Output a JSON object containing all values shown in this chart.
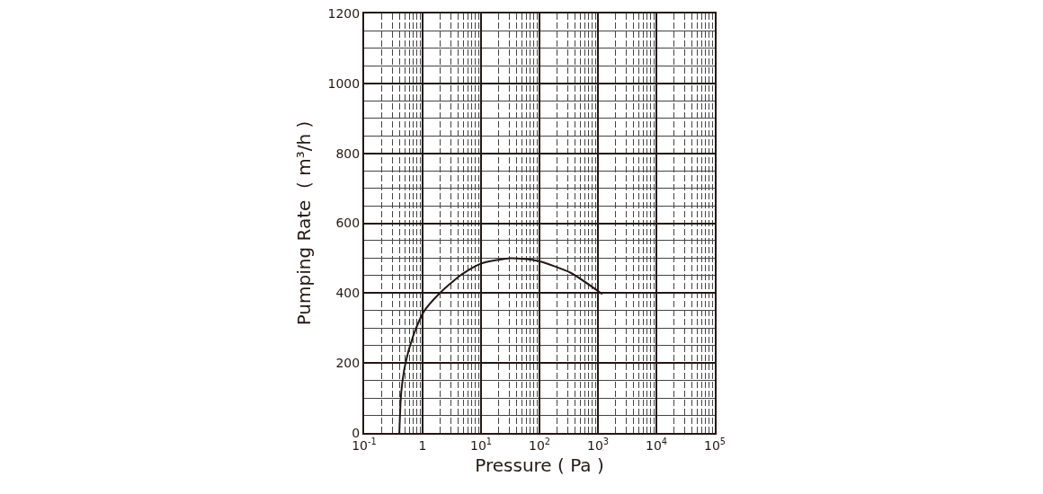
{
  "chart_data": {
    "type": "line",
    "xlabel": "Pressure ( Pa )",
    "ylabel": "Pumping Rate  ( m³/h )",
    "x": [
      0.4,
      0.43,
      0.51,
      0.69,
      1.04,
      1.89,
      4.3,
      9.8,
      32,
      94,
      342,
      1190
    ],
    "series": [
      {
        "color": "#231815",
        "values": [
          0,
          114,
          200,
          277,
          346,
          397,
          449,
          484,
          500,
          492,
          458,
          397
        ]
      }
    ],
    "log": "x",
    "xlim": [
      0.1,
      100000
    ],
    "ylim": [
      0,
      1200
    ],
    "xticks": [
      {
        "value": 0.1,
        "label": "10$^{-1}$"
      },
      1,
      {
        "value": 10,
        "label": "10$^{1}$"
      },
      {
        "value": 100,
        "label": "10$^{2}$"
      },
      {
        "value": 1000,
        "label": "10$^{3}$"
      },
      {
        "value": 10000,
        "label": "10$^{4}$"
      },
      {
        "value": 100000,
        "label": "10$^{5}$"
      }
    ],
    "yticks": [
      0,
      200,
      400,
      600,
      800,
      1000,
      1200
    ],
    "grid": true,
    "marker": "none",
    "line_style": "solid"
  }
}
